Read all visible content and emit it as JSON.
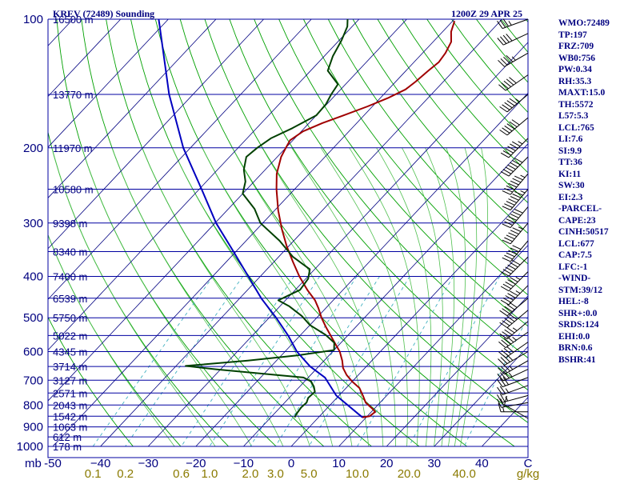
{
  "header": {
    "station": "KREV (72489) Sounding",
    "time": "1200Z 29 APR 25"
  },
  "indices": [
    "WMO:72489",
    "TP:197",
    "FRZ:709",
    "WB0:756",
    "PW:0.34",
    "RH:35.3",
    "MAXT:15.0",
    "TH:5572",
    "L57:5.3",
    "LCL:765",
    "LI:7.6",
    "SI:9.9",
    "TT:36",
    "KI:11",
    "SW:30",
    "EI:2.3",
    "-PARCEL-",
    "CAPE:23",
    "CINH:50517",
    "LCL:677",
    "CAP:7.5",
    "LFC:-1",
    "-WIND-",
    "STM:39/12",
    "HEL:-8",
    "SHR+:0.0",
    "SRDS:124",
    "EHI:0.0",
    "BRN:0.6",
    "BSHR:41"
  ],
  "colors": {
    "isobar": "#0000a0",
    "isotherm": "#000080",
    "dry_adiabat": "#00a000",
    "moist_adiabat": "#50c050",
    "mixing_ratio": "#40b0c0",
    "temperature": "#a00000",
    "dewpoint": "#004000",
    "parcel": "#0000c0",
    "wind_barb": "#000000"
  },
  "chart_data": {
    "type": "line",
    "title": "KREV (72489) Sounding",
    "subtitle": "1200Z 29 APR 25",
    "y_scale": "log",
    "ylim": [
      1000,
      100
    ],
    "xlim": [
      -50,
      50
    ],
    "pressure_ticks": [
      100,
      200,
      300,
      400,
      500,
      600,
      700,
      800,
      900,
      1000
    ],
    "pressure_tick_labels": [
      "100",
      "200",
      "300",
      "400",
      "500",
      "600",
      "700",
      "800",
      "900",
      "1000"
    ],
    "y_axis_unit": "mb",
    "temperature_ticks": [
      -50,
      -40,
      -30,
      -20,
      -10,
      0,
      10,
      20,
      30,
      40
    ],
    "temperature_tick_labels": [
      "-50",
      "−40",
      "−30",
      "−20",
      "−10",
      "0",
      "10",
      "20",
      "30",
      "40"
    ],
    "temperature_unit": "C",
    "mixing_ratio_ticks": [
      0.1,
      0.2,
      0.6,
      1.0,
      2.0,
      3.0,
      5.0,
      10.0,
      20.0,
      40.0
    ],
    "mixing_ratio_tick_labels": [
      "0.1",
      "0.2",
      "0.6",
      "1.0",
      "2.0",
      "3.0",
      "5.0",
      "10.0",
      "20.0",
      "40.0"
    ],
    "mixing_ratio_unit": "g/kg",
    "heights": [
      {
        "p": 100,
        "label": "16500 m"
      },
      {
        "p": 150,
        "label": "13770 m"
      },
      {
        "p": 200,
        "label": "11970 m"
      },
      {
        "p": 250,
        "label": "10580 m"
      },
      {
        "p": 300,
        "label": "9398 m"
      },
      {
        "p": 350,
        "label": "8340 m"
      },
      {
        "p": 400,
        "label": "7400 m"
      },
      {
        "p": 450,
        "label": "6539 m"
      },
      {
        "p": 500,
        "label": "5750 m"
      },
      {
        "p": 550,
        "label": "5022 m"
      },
      {
        "p": 600,
        "label": "4345 m"
      },
      {
        "p": 650,
        "label": "3714 m"
      },
      {
        "p": 700,
        "label": "3127 m"
      },
      {
        "p": 750,
        "label": "2571 m"
      },
      {
        "p": 800,
        "label": "2043 m"
      },
      {
        "p": 850,
        "label": "1542 m"
      },
      {
        "p": 900,
        "label": "1063 m"
      },
      {
        "p": 950,
        "label": "612 m"
      },
      {
        "p": 1000,
        "label": "178 m"
      }
    ],
    "series": [
      {
        "name": "Temperature",
        "points": [
          [
            855,
            9.2
          ],
          [
            850,
            10.5
          ],
          [
            830,
            10.8
          ],
          [
            815,
            9.5
          ],
          [
            790,
            7.0
          ],
          [
            760,
            5.0
          ],
          [
            730,
            2.8
          ],
          [
            705,
            0.0
          ],
          [
            680,
            -2.5
          ],
          [
            655,
            -4.6
          ],
          [
            630,
            -6.2
          ],
          [
            600,
            -8.5
          ],
          [
            575,
            -11.0
          ],
          [
            550,
            -13.6
          ],
          [
            525,
            -16.3
          ],
          [
            500,
            -19.0
          ],
          [
            475,
            -21.5
          ],
          [
            455,
            -23.8
          ],
          [
            430,
            -27.5
          ],
          [
            400,
            -31.8
          ],
          [
            370,
            -36.0
          ],
          [
            340,
            -40.4
          ],
          [
            310,
            -44.8
          ],
          [
            280,
            -49.3
          ],
          [
            250,
            -53.8
          ],
          [
            230,
            -56.8
          ],
          [
            210,
            -59.2
          ],
          [
            200,
            -60.0
          ],
          [
            192,
            -60.6
          ],
          [
            183,
            -59.6
          ],
          [
            175,
            -57.2
          ],
          [
            168,
            -54.3
          ],
          [
            160,
            -51.0
          ],
          [
            153,
            -48.4
          ],
          [
            146,
            -46.4
          ],
          [
            140,
            -45.8
          ],
          [
            132,
            -45.3
          ],
          [
            126,
            -44.8
          ],
          [
            120,
            -45.2
          ],
          [
            113,
            -46.2
          ],
          [
            107,
            -48.2
          ],
          [
            101,
            -49.6
          ]
        ]
      },
      {
        "name": "Dewpoint",
        "points": [
          [
            855,
            -5.0
          ],
          [
            840,
            -5.3
          ],
          [
            810,
            -5.6
          ],
          [
            790,
            -5.4
          ],
          [
            770,
            -6.0
          ],
          [
            745,
            -5.8
          ],
          [
            725,
            -7.0
          ],
          [
            705,
            -8.6
          ],
          [
            690,
            -11.0
          ],
          [
            660,
            -31.0
          ],
          [
            648,
            -38.0
          ],
          [
            630,
            -26.0
          ],
          [
            612,
            -16.5
          ],
          [
            595,
            -10.0
          ],
          [
            572,
            -11.4
          ],
          [
            548,
            -14.8
          ],
          [
            520,
            -20.0
          ],
          [
            495,
            -23.5
          ],
          [
            470,
            -28.0
          ],
          [
            455,
            -31.5
          ],
          [
            430,
            -29.0
          ],
          [
            405,
            -29.5
          ],
          [
            385,
            -31.0
          ],
          [
            360,
            -37.0
          ],
          [
            330,
            -43.0
          ],
          [
            300,
            -50.5
          ],
          [
            278,
            -54.5
          ],
          [
            256,
            -60.0
          ],
          [
            240,
            -61.8
          ],
          [
            225,
            -64.5
          ],
          [
            210,
            -66.5
          ],
          [
            200,
            -66.0
          ],
          [
            190,
            -65.0
          ],
          [
            180,
            -62.5
          ],
          [
            168,
            -60.0
          ],
          [
            158,
            -60.2
          ],
          [
            150,
            -61.0
          ],
          [
            142,
            -61.6
          ],
          [
            132,
            -66.4
          ],
          [
            122,
            -68.2
          ],
          [
            112,
            -69.5
          ],
          [
            104,
            -71.0
          ],
          [
            100,
            -72.4
          ]
        ]
      },
      {
        "name": "Parcel",
        "points": [
          [
            855,
            9.2
          ],
          [
            760,
            -0.6
          ],
          [
            690,
            -6.5
          ],
          [
            650,
            -11.8
          ],
          [
            600,
            -17.5
          ],
          [
            550,
            -22.5
          ],
          [
            500,
            -28.5
          ],
          [
            450,
            -35.5
          ],
          [
            400,
            -42.5
          ],
          [
            350,
            -50.5
          ],
          [
            300,
            -59.8
          ],
          [
            250,
            -69.5
          ],
          [
            200,
            -81.5
          ],
          [
            150,
            -95.0
          ],
          [
            100,
            -112.0
          ]
        ]
      }
    ],
    "wind": [
      {
        "p": 860,
        "speed_kt": 10,
        "dir": 300
      },
      {
        "p": 830,
        "speed_kt": 15,
        "dir": 270
      },
      {
        "p": 790,
        "speed_kt": 20,
        "dir": 260
      },
      {
        "p": 760,
        "speed_kt": 25,
        "dir": 255
      },
      {
        "p": 720,
        "speed_kt": 25,
        "dir": 250
      },
      {
        "p": 690,
        "speed_kt": 30,
        "dir": 250
      },
      {
        "p": 660,
        "speed_kt": 35,
        "dir": 245
      },
      {
        "p": 630,
        "speed_kt": 35,
        "dir": 240
      },
      {
        "p": 600,
        "speed_kt": 40,
        "dir": 240
      },
      {
        "p": 570,
        "speed_kt": 40,
        "dir": 235
      },
      {
        "p": 540,
        "speed_kt": 45,
        "dir": 235
      },
      {
        "p": 510,
        "speed_kt": 45,
        "dir": 230
      },
      {
        "p": 480,
        "speed_kt": 50,
        "dir": 230
      },
      {
        "p": 450,
        "speed_kt": 50,
        "dir": 230
      },
      {
        "p": 420,
        "speed_kt": 55,
        "dir": 225
      },
      {
        "p": 390,
        "speed_kt": 55,
        "dir": 225
      },
      {
        "p": 360,
        "speed_kt": 60,
        "dir": 225
      },
      {
        "p": 330,
        "speed_kt": 60,
        "dir": 220
      },
      {
        "p": 300,
        "speed_kt": 65,
        "dir": 220
      },
      {
        "p": 275,
        "speed_kt": 70,
        "dir": 220
      },
      {
        "p": 250,
        "speed_kt": 75,
        "dir": 220
      },
      {
        "p": 230,
        "speed_kt": 75,
        "dir": 220
      },
      {
        "p": 210,
        "speed_kt": 70,
        "dir": 225
      },
      {
        "p": 190,
        "speed_kt": 65,
        "dir": 225
      },
      {
        "p": 170,
        "speed_kt": 60,
        "dir": 230
      },
      {
        "p": 150,
        "speed_kt": 55,
        "dir": 230
      },
      {
        "p": 135,
        "speed_kt": 50,
        "dir": 235
      },
      {
        "p": 120,
        "speed_kt": 45,
        "dir": 240
      },
      {
        "p": 108,
        "speed_kt": 40,
        "dir": 245
      },
      {
        "p": 100,
        "speed_kt": 35,
        "dir": 250
      }
    ],
    "grid": true
  }
}
